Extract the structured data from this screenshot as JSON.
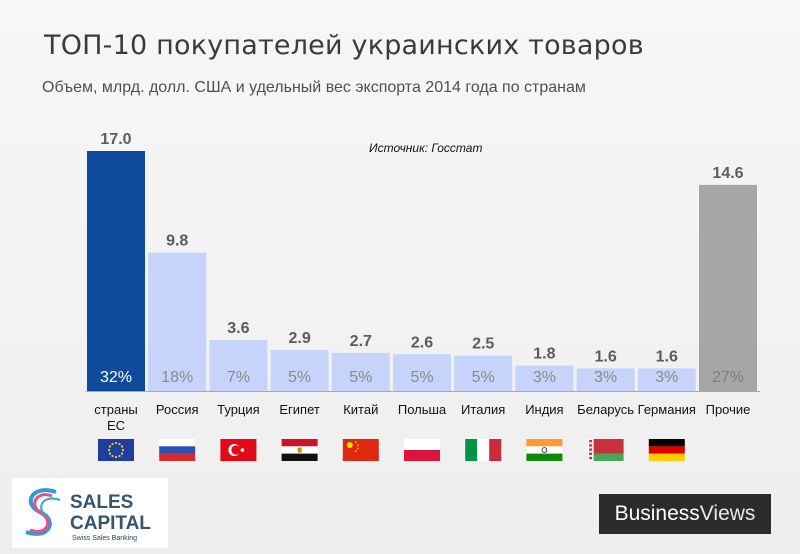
{
  "title": "ТОП-10 покупателей украинских товаров",
  "subtitle": "Объем, млрд. долл. США  и удельный вес экспорта 2014 года по странам",
  "source": "Источник: Госстат",
  "chart_data": {
    "type": "bar",
    "categories": [
      "страны ЕС",
      "Россия",
      "Турция",
      "Египет",
      "Китай",
      "Польша",
      "Италия",
      "Индия",
      "Беларусь",
      "Германия",
      "Прочие"
    ],
    "category_lines": [
      [
        "страны",
        "ЕС"
      ],
      [
        "Россия"
      ],
      [
        "Турция"
      ],
      [
        "Египет"
      ],
      [
        "Китай"
      ],
      [
        "Польша"
      ],
      [
        "Италия"
      ],
      [
        "Индия"
      ],
      [
        "Беларусь"
      ],
      [
        "Германия"
      ],
      [
        "Прочие"
      ]
    ],
    "values": [
      17.0,
      9.8,
      3.6,
      2.9,
      2.7,
      2.6,
      2.5,
      1.8,
      1.6,
      1.6,
      14.6
    ],
    "value_labels": [
      "17.0",
      "9.8",
      "3.6",
      "2.9",
      "2.7",
      "2.6",
      "2.5",
      "1.8",
      "1.6",
      "1.6",
      "14.6"
    ],
    "shares": [
      "32%",
      "18%",
      "7%",
      "5%",
      "5%",
      "5%",
      "5%",
      "3%",
      "3%",
      "3%",
      "27%"
    ],
    "ylim": [
      0,
      17.0
    ],
    "bar_colors": [
      "#0f4a9c",
      "#c6d4fb",
      "#c6d4fb",
      "#c6d4fb",
      "#c6d4fb",
      "#c6d4fb",
      "#c6d4fb",
      "#c6d4fb",
      "#c6d4fb",
      "#c6d4fb",
      "#a6a6a6"
    ],
    "share_colors": [
      "#ffffff",
      "#8a8a8a",
      "#8a8a8a",
      "#8a8a8a",
      "#8a8a8a",
      "#8a8a8a",
      "#8a8a8a",
      "#8a8a8a",
      "#8a8a8a",
      "#8a8a8a",
      "#7e7e7e"
    ],
    "flag_icons": [
      "eu-flag-icon",
      "russia-flag-icon",
      "turkey-flag-icon",
      "egypt-flag-icon",
      "china-flag-icon",
      "poland-flag-icon",
      "italy-flag-icon",
      "india-flag-icon",
      "belarus-flag-icon",
      "germany-flag-icon",
      ""
    ],
    "grid": false,
    "legend": "none"
  },
  "logos": {
    "left_name_line1": "SALES",
    "left_name_line2": "CAPITAL",
    "left_tagline": "Swiss Sales Banking",
    "right_part1": "Business",
    "right_part2": "Views"
  }
}
